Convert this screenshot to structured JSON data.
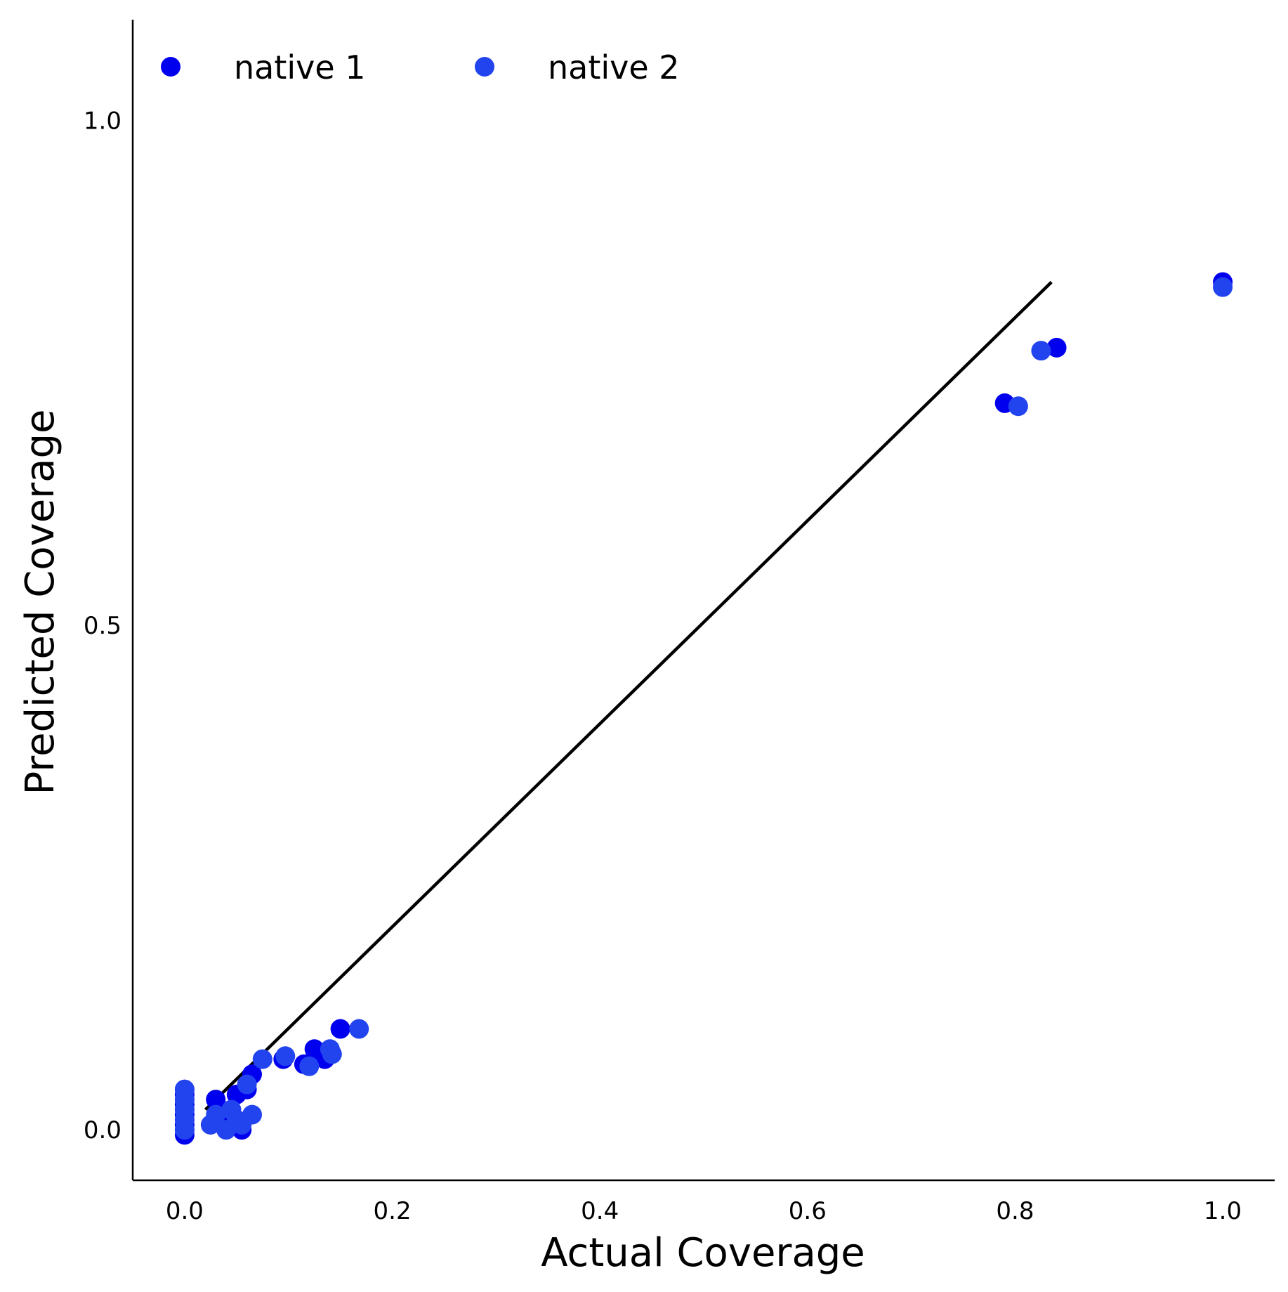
{
  "chart_data": {
    "type": "scatter",
    "title": "",
    "xlabel": "Actual Coverage",
    "ylabel": "Predicted Coverage",
    "xlim": [
      -0.05,
      1.05
    ],
    "ylim": [
      -0.05,
      1.1
    ],
    "xticks": [
      0.0,
      0.2,
      0.4,
      0.6,
      0.8,
      1.0
    ],
    "xtick_labels": [
      "0.0",
      "0.2",
      "0.4",
      "0.6",
      "0.8",
      "1.0"
    ],
    "yticks": [
      0.0,
      0.5,
      1.0
    ],
    "ytick_labels": [
      "0.0",
      "0.5",
      "1.0"
    ],
    "grid": false,
    "legend": {
      "position": "top-left",
      "columns": 2
    },
    "reference_line": {
      "x": [
        0.02,
        0.835
      ],
      "y": [
        0.02,
        0.84
      ],
      "color": "#000000"
    },
    "series": [
      {
        "name": "native 1",
        "color": "#0000ee",
        "points": [
          [
            0.0,
            0.0
          ],
          [
            0.0,
            0.005
          ],
          [
            0.0,
            0.01
          ],
          [
            0.0,
            0.015
          ],
          [
            0.0,
            0.02
          ],
          [
            0.0,
            0.025
          ],
          [
            0.0,
            0.03
          ],
          [
            0.0,
            0.035
          ],
          [
            0.0,
            0.04
          ],
          [
            0.0,
            -0.005
          ],
          [
            0.03,
            0.03
          ],
          [
            0.035,
            0.01
          ],
          [
            0.045,
            0.005
          ],
          [
            0.05,
            0.035
          ],
          [
            0.055,
            0.0
          ],
          [
            0.06,
            0.04
          ],
          [
            0.065,
            0.055
          ],
          [
            0.095,
            0.07
          ],
          [
            0.115,
            0.065
          ],
          [
            0.125,
            0.08
          ],
          [
            0.135,
            0.07
          ],
          [
            0.15,
            0.1
          ],
          [
            0.79,
            0.72
          ],
          [
            0.84,
            0.775
          ],
          [
            1.0,
            0.84
          ]
        ]
      },
      {
        "name": "native 2",
        "color": "#2244ee",
        "points": [
          [
            0.0,
            0.0
          ],
          [
            0.0,
            0.01
          ],
          [
            0.0,
            0.02
          ],
          [
            0.0,
            0.03
          ],
          [
            0.0,
            0.04
          ],
          [
            0.025,
            0.005
          ],
          [
            0.03,
            0.015
          ],
          [
            0.04,
            0.0
          ],
          [
            0.045,
            0.02
          ],
          [
            0.05,
            0.01
          ],
          [
            0.055,
            0.005
          ],
          [
            0.06,
            0.045
          ],
          [
            0.065,
            0.015
          ],
          [
            0.075,
            0.07
          ],
          [
            0.097,
            0.073
          ],
          [
            0.12,
            0.063
          ],
          [
            0.14,
            0.08
          ],
          [
            0.142,
            0.075
          ],
          [
            0.168,
            0.1
          ],
          [
            0.803,
            0.717
          ],
          [
            0.825,
            0.772
          ],
          [
            1.0,
            0.835
          ]
        ]
      }
    ]
  }
}
